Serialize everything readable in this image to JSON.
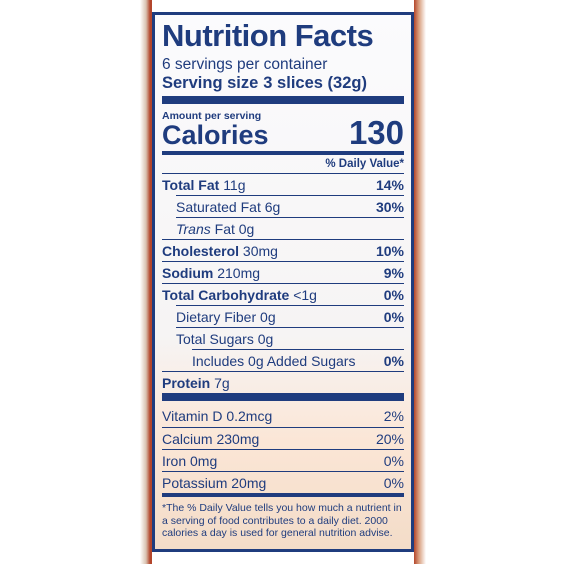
{
  "title": "Nutrition Facts",
  "servings": "6 servings per container",
  "serving_size": {
    "label": "Serving size",
    "value": "3 slices (32g)"
  },
  "amount_per_serving": "Amount per serving",
  "calories": {
    "label": "Calories",
    "value": "130"
  },
  "daily_value_header": "% Daily Value*",
  "rows": [
    {
      "label": "Total Fat",
      "amount": "11g",
      "dv": "14%"
    },
    {
      "label": "Saturated Fat",
      "amount": "6g",
      "dv": "30%"
    },
    {
      "italic": "Trans",
      "label": "Fat",
      "amount": "0g"
    },
    {
      "label": "Cholesterol",
      "amount": "30mg",
      "dv": "10%"
    },
    {
      "label": "Sodium",
      "amount": "210mg",
      "dv": "9%"
    },
    {
      "label": "Total Carbohydrate",
      "amount": "<1g",
      "dv": "0%"
    },
    {
      "label": "Dietary Fiber",
      "amount": "0g",
      "dv": "0%"
    },
    {
      "label": "Total Sugars",
      "amount": "0g"
    },
    {
      "label": "Includes 0g Added Sugars",
      "dv": "0%"
    },
    {
      "label": "Protein",
      "amount": "7g"
    }
  ],
  "vitamins": [
    {
      "label": "Vitamin D",
      "amount": "0.2mcg",
      "dv": "2%"
    },
    {
      "label": "Calcium",
      "amount": "230mg",
      "dv": "20%"
    },
    {
      "label": "Iron",
      "amount": "0mg",
      "dv": "0%"
    },
    {
      "label": "Potassium",
      "amount": "20mg",
      "dv": "0%"
    }
  ],
  "footnote": "*The % Daily Value tells you how much a nutrient in a serving of food contributes to a daily diet. 2000 calories a day is used for general nutrition advise."
}
